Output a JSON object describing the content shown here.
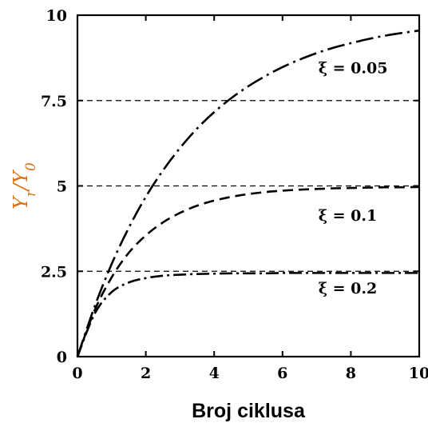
{
  "chart_data": {
    "type": "line",
    "title": "",
    "xlabel": "Broj ciklusa",
    "ylabel": "Y_r / Y_0",
    "ylabel_color": "#e07010",
    "xlim": [
      0,
      10
    ],
    "ylim": [
      0,
      10
    ],
    "xticks": [
      "0",
      "2",
      "4",
      "6",
      "8",
      "10"
    ],
    "yticks": [
      "0",
      "2.5",
      "5",
      "7.5",
      "10"
    ],
    "reference_lines": [
      2.5,
      5,
      7.5
    ],
    "series": [
      {
        "name": "ξ = 0.05",
        "annotation": "ξ  =  0.05",
        "x": [
          0,
          0.5,
          1,
          1.5,
          2,
          2.5,
          3,
          3.5,
          4,
          4.5,
          5,
          5.5,
          6,
          6.5,
          7,
          7.5,
          8,
          8.5,
          9,
          9.5,
          10
        ],
        "y": [
          0,
          1.46,
          2.71,
          3.77,
          4.68,
          5.45,
          6.11,
          6.68,
          7.16,
          7.57,
          7.92,
          8.22,
          8.48,
          8.7,
          8.89,
          9.05,
          9.18,
          9.3,
          9.4,
          9.48,
          9.55
        ]
      },
      {
        "name": "ξ = 0.1",
        "annotation": "ξ  =  0.1",
        "x": [
          0,
          0.5,
          1,
          1.5,
          2,
          2.5,
          3,
          3.5,
          4,
          4.5,
          5,
          5.5,
          6,
          6.5,
          7,
          7.5,
          8,
          8.5,
          9,
          9.5,
          10
        ],
        "y": [
          0,
          1.35,
          2.32,
          3.04,
          3.55,
          3.93,
          4.21,
          4.42,
          4.57,
          4.68,
          4.76,
          4.82,
          4.86,
          4.89,
          4.91,
          4.93,
          4.94,
          4.95,
          4.96,
          4.96,
          4.97
        ]
      },
      {
        "name": "ξ = 0.2",
        "annotation": "ξ  =  0.2",
        "x": [
          0,
          0.5,
          1,
          1.5,
          2,
          2.5,
          3,
          3.5,
          4,
          4.5,
          5,
          5.5,
          6,
          6.5,
          7,
          7.5,
          8,
          8.5,
          9,
          9.5,
          10
        ],
        "y": [
          0,
          1.25,
          1.89,
          2.17,
          2.3,
          2.37,
          2.4,
          2.42,
          2.43,
          2.44,
          2.44,
          2.44,
          2.45,
          2.45,
          2.45,
          2.45,
          2.45,
          2.45,
          2.45,
          2.45,
          2.45
        ]
      }
    ],
    "grid": false,
    "legend": "none",
    "line_color": "#000000"
  }
}
